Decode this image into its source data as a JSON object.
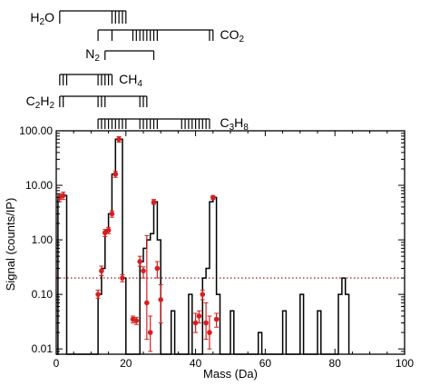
{
  "chart_data": {
    "type": "line",
    "title": "",
    "xlabel": "Mass (Da)",
    "ylabel": "Signal (counts/IP)",
    "xlim": [
      0,
      100
    ],
    "ylim": [
      0.008,
      100
    ],
    "yscale": "log",
    "x_ticks": [
      0,
      20,
      40,
      60,
      80,
      100
    ],
    "y_ticks": [
      {
        "value": 100,
        "label": "100.00"
      },
      {
        "value": 10,
        "label": "10.00"
      },
      {
        "value": 1,
        "label": "1.00"
      },
      {
        "value": 0.1,
        "label": "0.10"
      },
      {
        "value": 0.01,
        "label": "0.01"
      }
    ],
    "threshold": {
      "value": 0.2,
      "style": "dotted",
      "color": "#8b0000"
    },
    "spectrum": [
      [
        0,
        0.008
      ],
      [
        0.5,
        6.5
      ],
      [
        2,
        6.5
      ],
      [
        3,
        0.008
      ],
      [
        11.5,
        0.008
      ],
      [
        12,
        0.1
      ],
      [
        13,
        0.3
      ],
      [
        14,
        1.5
      ],
      [
        15,
        3.0
      ],
      [
        16,
        16
      ],
      [
        17,
        70
      ],
      [
        18,
        70
      ],
      [
        19,
        0.2
      ],
      [
        20,
        0.008
      ],
      [
        23,
        0.008
      ],
      [
        24,
        0.4
      ],
      [
        25,
        0.7
      ],
      [
        26,
        1.0
      ],
      [
        27,
        1.3
      ],
      [
        28,
        5.0
      ],
      [
        29,
        1.0
      ],
      [
        30,
        0.008
      ],
      [
        32,
        0.008
      ],
      [
        33,
        0.05
      ],
      [
        34,
        0.008
      ],
      [
        37,
        0.008
      ],
      [
        38,
        0.1
      ],
      [
        39,
        0.008
      ],
      [
        41,
        0.008
      ],
      [
        42,
        0.2
      ],
      [
        43,
        0.3
      ],
      [
        44,
        5.0
      ],
      [
        45,
        6.0
      ],
      [
        46,
        0.1
      ],
      [
        47,
        0.008
      ],
      [
        49,
        0.008
      ],
      [
        50,
        0.05
      ],
      [
        51,
        0.008
      ],
      [
        57,
        0.008
      ],
      [
        58,
        0.02
      ],
      [
        59,
        0.008
      ],
      [
        64,
        0.008
      ],
      [
        65,
        0.05
      ],
      [
        66,
        0.008
      ],
      [
        69,
        0.008
      ],
      [
        70,
        0.1
      ],
      [
        71,
        0.008
      ],
      [
        74,
        0.008
      ],
      [
        75,
        0.05
      ],
      [
        76,
        0.008
      ],
      [
        80,
        0.008
      ],
      [
        81,
        0.1
      ],
      [
        82,
        0.2
      ],
      [
        83,
        0.1
      ],
      [
        84,
        0.008
      ]
    ],
    "measurements": [
      {
        "x": 1,
        "y": 6.0,
        "lo": 5.0,
        "hi": 7.0
      },
      {
        "x": 2,
        "y": 6.5,
        "lo": 5.5,
        "hi": 7.5
      },
      {
        "x": 12,
        "y": 0.1,
        "lo": 0.085,
        "hi": 0.12
      },
      {
        "x": 13,
        "y": 0.27,
        "lo": 0.22,
        "hi": 0.33
      },
      {
        "x": 14,
        "y": 1.35,
        "lo": 1.15,
        "hi": 1.55
      },
      {
        "x": 15,
        "y": 1.5,
        "lo": 1.3,
        "hi": 1.7
      },
      {
        "x": 16,
        "y": 3.0,
        "lo": 2.6,
        "hi": 3.4
      },
      {
        "x": 17,
        "y": 16,
        "lo": 14,
        "hi": 18
      },
      {
        "x": 18,
        "y": 70,
        "lo": 62,
        "hi": 78
      },
      {
        "x": 19,
        "y": 0.2,
        "lo": 0.17,
        "hi": 0.23
      },
      {
        "x": 22,
        "y": 0.035,
        "lo": 0.03,
        "hi": 0.04
      },
      {
        "x": 23,
        "y": 0.033,
        "lo": 0.028,
        "hi": 0.038
      },
      {
        "x": 24,
        "y": 0.4,
        "lo": 0.33,
        "hi": 0.5
      },
      {
        "x": 25,
        "y": 0.27,
        "lo": 0.2,
        "hi": 0.32
      },
      {
        "x": 26,
        "y": 0.07,
        "lo": 0.015,
        "hi": 1.2
      },
      {
        "x": 27,
        "y": 0.02,
        "lo": 0.009,
        "hi": 0.04
      },
      {
        "x": 28,
        "y": 4.9,
        "lo": 4.5,
        "hi": 5.5
      },
      {
        "x": 29,
        "y": 0.3,
        "lo": 0.2,
        "hi": 0.4
      },
      {
        "x": 30,
        "y": 0.08,
        "lo": 0.03,
        "hi": 0.15
      },
      {
        "x": 40,
        "y": 0.03,
        "lo": 0.02,
        "hi": 0.045
      },
      {
        "x": 41,
        "y": 0.04,
        "lo": 0.03,
        "hi": 0.05
      },
      {
        "x": 42,
        "y": 0.1,
        "lo": 0.08,
        "hi": 0.12
      },
      {
        "x": 43,
        "y": 0.03,
        "lo": 0.015,
        "hi": 0.07
      },
      {
        "x": 44,
        "y": 0.02,
        "lo": 0.01,
        "hi": 0.04
      },
      {
        "x": 45,
        "y": 6.0,
        "lo": 5.5,
        "hi": 6.5
      },
      {
        "x": 46,
        "y": 0.035,
        "lo": 0.025,
        "hi": 0.045
      }
    ],
    "molecules": [
      {
        "label": "H2O",
        "parts": [
          {
            "t": "H"
          },
          {
            "t": "2",
            "sub": true
          },
          {
            "t": "O"
          }
        ],
        "label_side": "left",
        "label_at": 0,
        "start": 1,
        "end": 20,
        "ticks": [
          1,
          16,
          17,
          18,
          19,
          20
        ]
      },
      {
        "label": "CO2",
        "parts": [
          {
            "t": "CO"
          },
          {
            "t": "2",
            "sub": true
          }
        ],
        "label_side": "right",
        "label_at": 47,
        "start": 12,
        "end": 45,
        "ticks": [
          12,
          16,
          22,
          23,
          24,
          25,
          26,
          27,
          28,
          29,
          44,
          45
        ]
      },
      {
        "label": "N2",
        "parts": [
          {
            "t": "N"
          },
          {
            "t": "2",
            "sub": true
          }
        ],
        "label_side": "left",
        "label_at": 13,
        "start": 14,
        "end": 28,
        "ticks": [
          14,
          28
        ]
      },
      {
        "label": "CH4",
        "parts": [
          {
            "t": "CH"
          },
          {
            "t": "4",
            "sub": true
          }
        ],
        "label_side": "right",
        "label_at": 18,
        "start": 1,
        "end": 16,
        "ticks": [
          1,
          2,
          3,
          12,
          13,
          14,
          15,
          16
        ]
      },
      {
        "label": "C2H2",
        "parts": [
          {
            "t": "C"
          },
          {
            "t": "2",
            "sub": true
          },
          {
            "t": "H"
          },
          {
            "t": "2",
            "sub": true
          }
        ],
        "label_side": "left",
        "label_at": 0,
        "start": 1,
        "end": 26,
        "ticks": [
          1,
          2,
          12,
          13,
          14,
          24,
          25,
          26
        ]
      },
      {
        "label": "C3H8",
        "parts": [
          {
            "t": "C"
          },
          {
            "t": "3",
            "sub": true
          },
          {
            "t": "H"
          },
          {
            "t": "8",
            "sub": true
          }
        ],
        "label_side": "right",
        "label_at": 47,
        "start": 12,
        "end": 44,
        "ticks": [
          12,
          13,
          14,
          15,
          16,
          17,
          18,
          19,
          20,
          24,
          25,
          26,
          27,
          28,
          29,
          36,
          37,
          38,
          39,
          40,
          41,
          42,
          43,
          44
        ]
      }
    ],
    "colors": {
      "spectrum": "#000000",
      "measurement": "#d62020",
      "threshold": "#8b0000"
    }
  }
}
